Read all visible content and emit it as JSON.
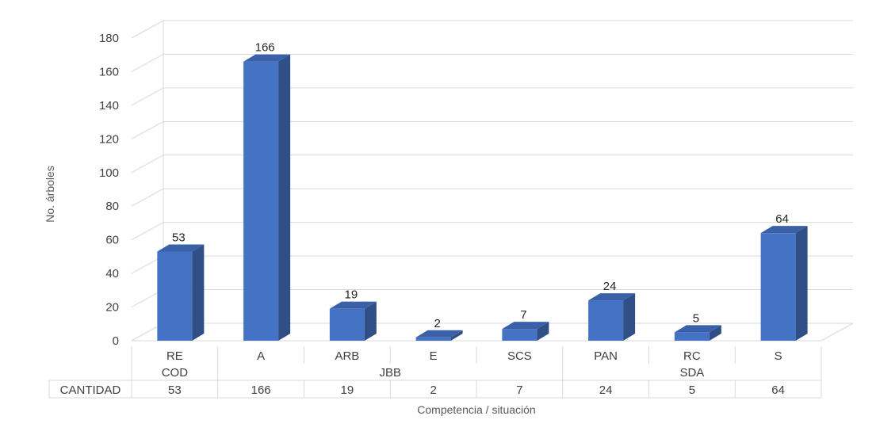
{
  "chart_data": {
    "type": "bar",
    "three_d": true,
    "ylabel": "No. árboles",
    "xlabel": "Competencia / situación",
    "ylim": [
      0,
      180
    ],
    "yticks": [
      0,
      20,
      40,
      60,
      80,
      100,
      120,
      140,
      160,
      180
    ],
    "grid": true,
    "categories": [
      "RE",
      "A",
      "ARB",
      "E",
      "SCS",
      "PAN",
      "RC",
      "S"
    ],
    "groups": [
      {
        "label": "COD",
        "span": 1
      },
      {
        "label": "JBB",
        "span": 4
      },
      {
        "label": "SDA",
        "span": 3
      }
    ],
    "series": [
      {
        "name": "CANTIDAD",
        "values": [
          53,
          166,
          19,
          2,
          7,
          24,
          5,
          64
        ]
      }
    ],
    "data_table": true,
    "colors": {
      "bar_front": "#4472C4",
      "bar_side": "#2F4F86",
      "bar_top": "#3A60A8",
      "grid": "#D9D9D9"
    }
  }
}
